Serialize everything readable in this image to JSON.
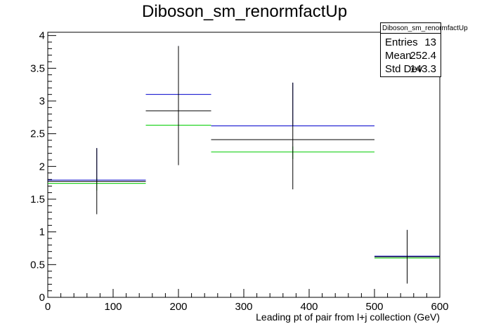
{
  "chart_data": {
    "type": "histogram",
    "title": "Diboson_sm_renormfactUp",
    "xlabel": "Leading pt of pair from l+j collection (GeV)",
    "ylabel": "",
    "xlim": [
      0,
      600
    ],
    "ylim": [
      0,
      4.05
    ],
    "x_ticks": [
      "0",
      "100",
      "200",
      "300",
      "400",
      "500",
      "600"
    ],
    "y_ticks": [
      "0",
      "0.5",
      "1",
      "1.5",
      "2",
      "2.5",
      "3",
      "3.5",
      "4"
    ],
    "bins": [
      {
        "low": 0,
        "high": 150,
        "center": 75,
        "nominal": 1.77,
        "err_low": 1.27,
        "err_high": 2.28,
        "up": 1.79,
        "down": 1.74
      },
      {
        "low": 150,
        "high": 250,
        "center": 200,
        "nominal": 2.85,
        "err_low": 2.02,
        "err_high": 3.84,
        "up": 3.1,
        "down": 2.63
      },
      {
        "low": 250,
        "high": 500,
        "center": 375,
        "nominal": 2.41,
        "err_low": 1.65,
        "err_high": 3.28,
        "up": 2.62,
        "down": 2.22
      },
      {
        "low": 500,
        "high": 600,
        "center": 550,
        "nominal": 0.62,
        "err_low": 0.21,
        "err_high": 1.03,
        "up": 0.63,
        "down": 0.6
      }
    ],
    "colors": {
      "nominal": "#000000",
      "up": "#0000cc",
      "down": "#00cc00"
    },
    "grid": false,
    "legend": "none"
  },
  "stats": {
    "name": "Diboson_sm_renormfactUp",
    "rows": [
      {
        "key": "Entries",
        "value": "13"
      },
      {
        "key": "Mean",
        "value": "252.4"
      },
      {
        "key": "Std Dev",
        "value": "143.3"
      }
    ]
  }
}
